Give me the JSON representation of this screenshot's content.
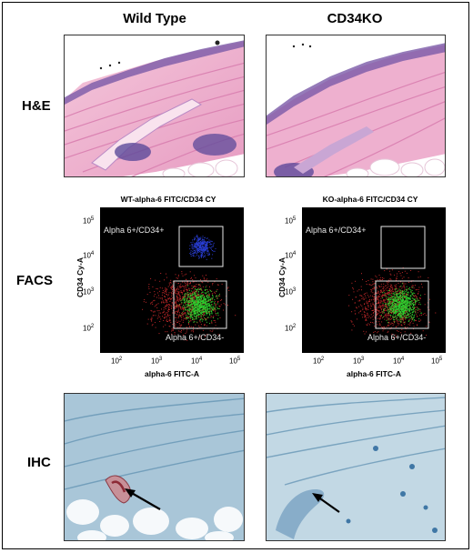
{
  "columns": {
    "wt": "Wild Type",
    "ko": "CD34KO"
  },
  "rows": {
    "he": "H&E",
    "facs": "FACS",
    "ihc": "IHC"
  },
  "facs": {
    "wt_title": "WT-alpha-6 FITC/CD34 CY",
    "ko_title": "KO-alpha-6 FITC/CD34 CY",
    "ylabel": "CD34 Cy-A",
    "xlabel": "alpha-6 FITC-A",
    "gate_top": "Alpha 6+/CD34+",
    "gate_bottom": "Alpha 6+/CD34-",
    "ticks": [
      "10",
      "2",
      "10",
      "3",
      "10",
      "4",
      "10",
      "5"
    ]
  },
  "colors": {
    "he_pink": "#e9a5c8",
    "he_purple": "#5a3f8f",
    "ihc_blue": "#6f9fbf",
    "facs_red": "#c0282a",
    "facs_green": "#2fd12f",
    "facs_blue": "#2a3fd8"
  }
}
